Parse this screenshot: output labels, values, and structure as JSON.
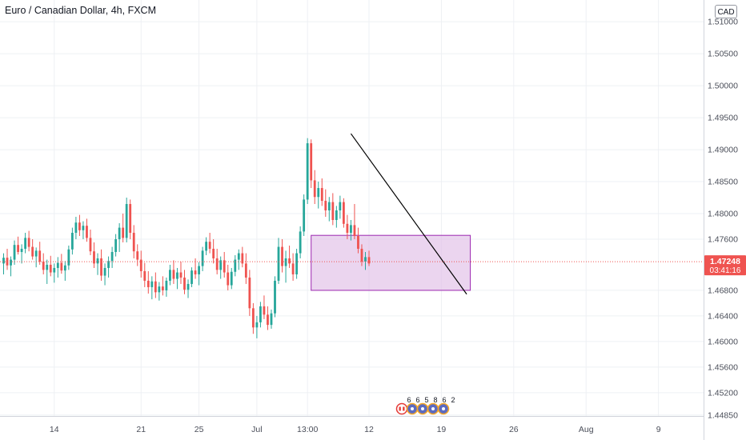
{
  "title": "Euro / Canadian Dollar, 4h, FXCM",
  "currency_badge": "CAD",
  "colors": {
    "up": "#26a69a",
    "down": "#ef5350",
    "grid": "#eef0f4",
    "axis_text": "#4a4e59",
    "last_price_bg": "#ef5350",
    "box_fill": "#e1bee7",
    "box_stroke": "#9c27b0",
    "trendline": "#000000"
  },
  "last_price": {
    "value": 1.47248,
    "label": "1.47248",
    "countdown": "03:41:16"
  },
  "indicator_icons": [
    "flag-icon",
    "event-icon",
    "event-icon",
    "event-icon",
    "event-icon"
  ],
  "event_numbers": [
    "6",
    "6",
    "5",
    "8",
    "6",
    "2"
  ],
  "chart_data": {
    "type": "candlestick",
    "title": "Euro / Canadian Dollar, 4h, FXCM",
    "x_axis": {
      "ticks": [
        {
          "label": "14",
          "x_index": 14
        },
        {
          "label": "21",
          "x_index": 38
        },
        {
          "label": "25",
          "x_index": 54
        },
        {
          "label": "Jul",
          "x_index": 70
        },
        {
          "label": "13:00",
          "x_index": 84
        },
        {
          "label": "12",
          "x_index": 101
        },
        {
          "label": "19",
          "x_index": 121
        },
        {
          "label": "26",
          "x_index": 141
        },
        {
          "label": "Aug",
          "x_index": 161
        },
        {
          "label": "9",
          "x_index": 181
        }
      ],
      "range": [
        0,
        194
      ]
    },
    "y_axis": {
      "ticks": [
        "1.51000",
        "1.50500",
        "1.50000",
        "1.49500",
        "1.49000",
        "1.48500",
        "1.48000",
        "1.47600",
        "1.46800",
        "1.46400",
        "1.46000",
        "1.45600",
        "1.45200",
        "1.44850"
      ],
      "range": [
        1.4446,
        1.5134
      ],
      "grid": true
    },
    "last_price": 1.47248,
    "candles": [
      [
        1.4722,
        1.4738,
        1.4705,
        1.4731
      ],
      [
        1.4731,
        1.4745,
        1.4712,
        1.4719
      ],
      [
        1.4719,
        1.4733,
        1.4702,
        1.4728
      ],
      [
        1.4728,
        1.4758,
        1.472,
        1.4751
      ],
      [
        1.4751,
        1.4764,
        1.4736,
        1.474
      ],
      [
        1.474,
        1.4752,
        1.4722,
        1.4745
      ],
      [
        1.4745,
        1.477,
        1.4738,
        1.4762
      ],
      [
        1.4762,
        1.4773,
        1.4741,
        1.4748
      ],
      [
        1.4748,
        1.476,
        1.4728,
        1.4733
      ],
      [
        1.4733,
        1.4747,
        1.4716,
        1.4742
      ],
      [
        1.4742,
        1.4756,
        1.472,
        1.4725
      ],
      [
        1.4725,
        1.4738,
        1.4705,
        1.4712
      ],
      [
        1.4712,
        1.4728,
        1.469,
        1.472
      ],
      [
        1.472,
        1.4734,
        1.4702,
        1.4708
      ],
      [
        1.4708,
        1.4722,
        1.4692,
        1.4715
      ],
      [
        1.4715,
        1.4732,
        1.47,
        1.4723
      ],
      [
        1.4723,
        1.4737,
        1.4706,
        1.4711
      ],
      [
        1.4711,
        1.4726,
        1.4695,
        1.4719
      ],
      [
        1.4719,
        1.475,
        1.4712,
        1.4744
      ],
      [
        1.4744,
        1.4778,
        1.4736,
        1.477
      ],
      [
        1.477,
        1.4795,
        1.476,
        1.4786
      ],
      [
        1.4786,
        1.4798,
        1.4765,
        1.4774
      ],
      [
        1.4774,
        1.4788,
        1.476,
        1.4781
      ],
      [
        1.4781,
        1.4792,
        1.4756,
        1.4762
      ],
      [
        1.4762,
        1.4775,
        1.4735,
        1.4741
      ],
      [
        1.4741,
        1.4755,
        1.4715,
        1.4722
      ],
      [
        1.4722,
        1.4738,
        1.4704,
        1.473
      ],
      [
        1.473,
        1.4744,
        1.4695,
        1.4703
      ],
      [
        1.4703,
        1.4722,
        1.4688,
        1.4715
      ],
      [
        1.4715,
        1.4733,
        1.47,
        1.4726
      ],
      [
        1.4726,
        1.4748,
        1.4715,
        1.474
      ],
      [
        1.474,
        1.4768,
        1.4733,
        1.476
      ],
      [
        1.476,
        1.4785,
        1.474,
        1.4778
      ],
      [
        1.4778,
        1.48,
        1.4755,
        1.4762
      ],
      [
        1.4762,
        1.4825,
        1.4755,
        1.4815
      ],
      [
        1.4815,
        1.4822,
        1.476,
        1.477
      ],
      [
        1.477,
        1.4782,
        1.473,
        1.4741
      ],
      [
        1.4741,
        1.4752,
        1.4718,
        1.4728
      ],
      [
        1.4728,
        1.4742,
        1.47,
        1.471
      ],
      [
        1.471,
        1.4723,
        1.4685,
        1.4695
      ],
      [
        1.4695,
        1.471,
        1.4675,
        1.4685
      ],
      [
        1.4685,
        1.4702,
        1.4666,
        1.4694
      ],
      [
        1.4694,
        1.4708,
        1.4668,
        1.4677
      ],
      [
        1.4677,
        1.4693,
        1.4664,
        1.4686
      ],
      [
        1.4686,
        1.4702,
        1.4672,
        1.468
      ],
      [
        1.468,
        1.47,
        1.467,
        1.4695
      ],
      [
        1.4695,
        1.472,
        1.4688,
        1.4712
      ],
      [
        1.4712,
        1.4727,
        1.469,
        1.4698
      ],
      [
        1.4698,
        1.4715,
        1.4682,
        1.4708
      ],
      [
        1.4708,
        1.4725,
        1.469,
        1.47
      ],
      [
        1.47,
        1.4712,
        1.4674,
        1.4681
      ],
      [
        1.4681,
        1.4697,
        1.4668,
        1.469
      ],
      [
        1.469,
        1.4716,
        1.4685,
        1.4711
      ],
      [
        1.4711,
        1.473,
        1.4698,
        1.4705
      ],
      [
        1.4705,
        1.4724,
        1.4688,
        1.4718
      ],
      [
        1.4718,
        1.4748,
        1.471,
        1.4742
      ],
      [
        1.4742,
        1.4763,
        1.4735,
        1.4756
      ],
      [
        1.4756,
        1.477,
        1.4738,
        1.4745
      ],
      [
        1.4745,
        1.476,
        1.4722,
        1.473
      ],
      [
        1.473,
        1.4745,
        1.4705,
        1.4712
      ],
      [
        1.4712,
        1.4733,
        1.4698,
        1.4727
      ],
      [
        1.4727,
        1.474,
        1.47,
        1.4708
      ],
      [
        1.4708,
        1.472,
        1.468,
        1.4688
      ],
      [
        1.4688,
        1.4715,
        1.4682,
        1.4709
      ],
      [
        1.4709,
        1.4735,
        1.4702,
        1.4728
      ],
      [
        1.4728,
        1.4744,
        1.4712,
        1.4738
      ],
      [
        1.4738,
        1.4748,
        1.4716,
        1.4722
      ],
      [
        1.4722,
        1.4738,
        1.469,
        1.47
      ],
      [
        1.47,
        1.4712,
        1.464,
        1.4652
      ],
      [
        1.4652,
        1.466,
        1.4612,
        1.4622
      ],
      [
        1.4622,
        1.464,
        1.4605,
        1.463
      ],
      [
        1.463,
        1.4662,
        1.4622,
        1.4655
      ],
      [
        1.4655,
        1.4672,
        1.4635,
        1.4642
      ],
      [
        1.4642,
        1.4655,
        1.4618,
        1.4626
      ],
      [
        1.4626,
        1.465,
        1.462,
        1.4644
      ],
      [
        1.4644,
        1.4702,
        1.4638,
        1.4695
      ],
      [
        1.4695,
        1.4762,
        1.469,
        1.4748
      ],
      [
        1.4748,
        1.476,
        1.4708,
        1.4718
      ],
      [
        1.4718,
        1.4742,
        1.4692,
        1.473
      ],
      [
        1.473,
        1.475,
        1.4715,
        1.4722
      ],
      [
        1.4722,
        1.4738,
        1.4695,
        1.4705
      ],
      [
        1.4705,
        1.4745,
        1.4698,
        1.4738
      ],
      [
        1.4738,
        1.478,
        1.473,
        1.4772
      ],
      [
        1.4772,
        1.483,
        1.4765,
        1.4822
      ],
      [
        1.4822,
        1.4918,
        1.4815,
        1.491
      ],
      [
        1.491,
        1.4916,
        1.484,
        1.4852
      ],
      [
        1.4852,
        1.4868,
        1.4815,
        1.4826
      ],
      [
        1.4826,
        1.485,
        1.4808,
        1.484
      ],
      [
        1.484,
        1.4855,
        1.4812,
        1.482
      ],
      [
        1.482,
        1.4838,
        1.4795,
        1.4805
      ],
      [
        1.4805,
        1.4826,
        1.4788,
        1.4818
      ],
      [
        1.4818,
        1.4832,
        1.4782,
        1.479
      ],
      [
        1.479,
        1.4812,
        1.4778,
        1.4805
      ],
      [
        1.4805,
        1.4828,
        1.4792,
        1.4818
      ],
      [
        1.4818,
        1.4824,
        1.4778,
        1.4784
      ],
      [
        1.4784,
        1.4798,
        1.476,
        1.477
      ],
      [
        1.477,
        1.479,
        1.4758,
        1.4782
      ],
      [
        1.4782,
        1.4815,
        1.476,
        1.4765
      ],
      [
        1.4765,
        1.4778,
        1.4738,
        1.4745
      ],
      [
        1.4745,
        1.4752,
        1.4718,
        1.4725
      ],
      [
        1.4725,
        1.474,
        1.4712,
        1.4732
      ],
      [
        1.4732,
        1.4742,
        1.4718,
        1.4722
      ]
    ],
    "annotations": [
      {
        "type": "rectangle",
        "x_index_start": 85,
        "x_index_end": 129,
        "y_top": 1.4766,
        "y_bottom": 1.468
      },
      {
        "type": "trendline",
        "x_index_start": 96,
        "x_index_end": 128,
        "y_start": 1.4925,
        "y_end": 1.4674
      }
    ]
  }
}
